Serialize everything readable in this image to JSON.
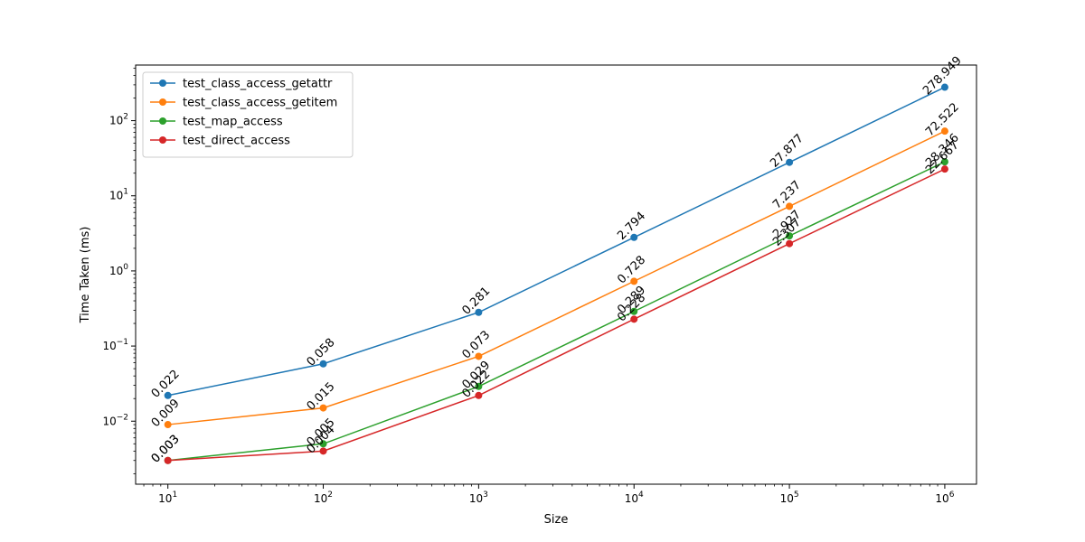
{
  "chart_data": {
    "type": "line",
    "title": "",
    "xlabel": "Size",
    "ylabel": "Time Taken (ms)",
    "xscale": "log",
    "yscale": "log",
    "x": [
      10,
      100,
      1000,
      10000,
      100000,
      1000000
    ],
    "x_tick_labels": [
      {
        "base": "10",
        "exp": "1"
      },
      {
        "base": "10",
        "exp": "2"
      },
      {
        "base": "10",
        "exp": "3"
      },
      {
        "base": "10",
        "exp": "4"
      },
      {
        "base": "10",
        "exp": "5"
      },
      {
        "base": "10",
        "exp": "6"
      }
    ],
    "y_tick_labels": [
      {
        "value": 0.01,
        "base": "10",
        "exp": "−2"
      },
      {
        "value": 0.1,
        "base": "10",
        "exp": "−1"
      },
      {
        "value": 1,
        "base": "10",
        "exp": "0"
      },
      {
        "value": 10,
        "base": "10",
        "exp": "1"
      },
      {
        "value": 100,
        "base": "10",
        "exp": "2"
      }
    ],
    "xlim": [
      6.2,
      1600000
    ],
    "ylim": [
      0.00145,
      550
    ],
    "grid": false,
    "legend_position": "upper-left",
    "markers": "circle",
    "series": [
      {
        "name": "test_class_access_getattr",
        "color": "#1f77b4",
        "values": [
          0.022,
          0.058,
          0.281,
          2.794,
          27.877,
          278.949
        ],
        "labels": [
          "0.022",
          "0.058",
          "0.281",
          "2.794",
          "27.877",
          "278.949"
        ]
      },
      {
        "name": "test_class_access_getitem",
        "color": "#ff7f0e",
        "values": [
          0.009,
          0.015,
          0.073,
          0.728,
          7.237,
          72.522
        ],
        "labels": [
          "0.009",
          "0.015",
          "0.073",
          "0.728",
          "7.237",
          "72.522"
        ]
      },
      {
        "name": "test_map_access",
        "color": "#2ca02c",
        "values": [
          0.003,
          0.005,
          0.029,
          0.289,
          2.927,
          28.346
        ],
        "labels": [
          "0.003",
          "0.005",
          "0.029",
          "0.289",
          "2.927",
          "28.346"
        ]
      },
      {
        "name": "test_direct_access",
        "color": "#d62728",
        "values": [
          0.003,
          0.004,
          0.022,
          0.228,
          2.307,
          22.667
        ],
        "labels": [
          "0.003",
          "0.004",
          "0.022",
          "0.228",
          "2.307",
          "22.667"
        ]
      }
    ]
  }
}
